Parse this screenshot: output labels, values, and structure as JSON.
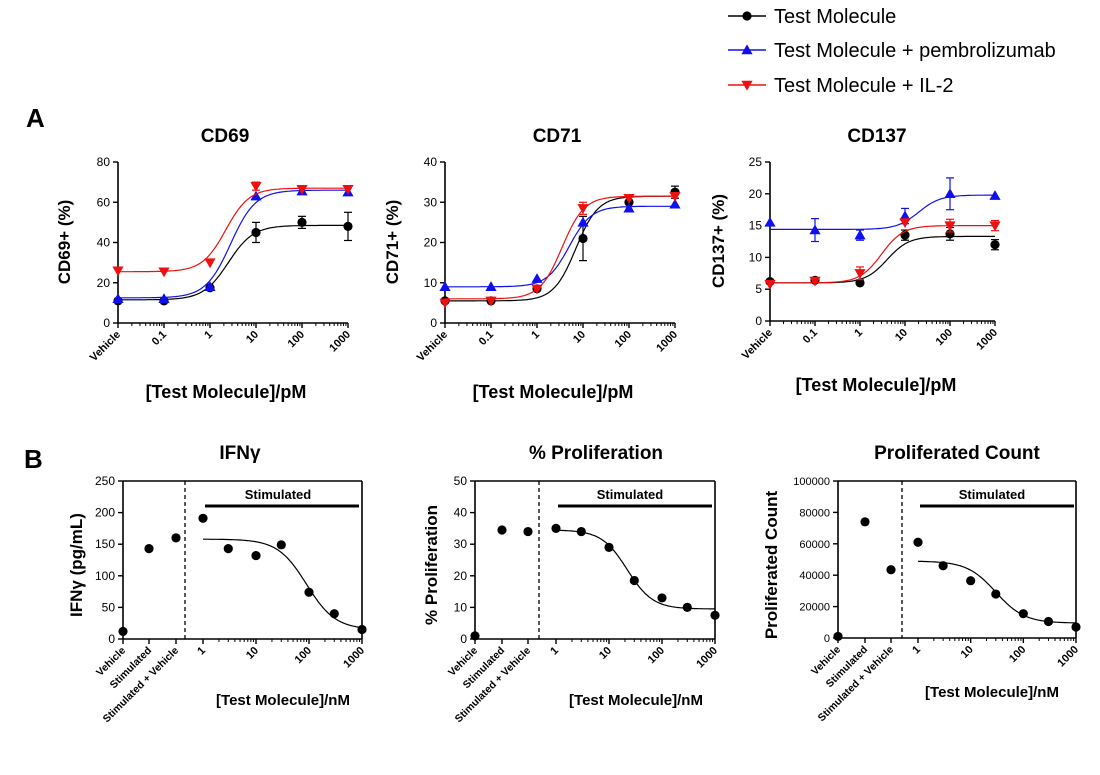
{
  "legend": {
    "items": [
      {
        "label": "Test Molecule",
        "color": "#000000",
        "marker": "circle"
      },
      {
        "label": "Test Molecule + pembrolizumab",
        "color": "#1010ee",
        "marker": "triangle-up"
      },
      {
        "label": "Test Molecule + IL-2",
        "color": "#ee1010",
        "marker": "triangle-down"
      }
    ]
  },
  "panels": {
    "a_label": "A",
    "b_label": "B"
  },
  "chart_data": [
    {
      "type": "scatter",
      "title": "CD69",
      "ylabel": "CD69+ (%)",
      "xlabel": "[Test Molecule]/pM",
      "ylim": [
        0,
        80
      ],
      "yticks": [
        0,
        20,
        40,
        60,
        80
      ],
      "xscale": "log",
      "xlim": [
        0.01,
        1000
      ],
      "xticks": [
        {
          "label": "Vehicle",
          "x": 0.01
        },
        {
          "label": "0.1",
          "x": 0.1
        },
        {
          "label": "1",
          "x": 1
        },
        {
          "label": "10",
          "x": 10
        },
        {
          "label": "100",
          "x": 100
        },
        {
          "label": "1000",
          "x": 1000
        }
      ],
      "series": [
        {
          "name": "Test Molecule",
          "color": "#000000",
          "marker": "circle",
          "points": [
            {
              "x": 0.01,
              "y": 11
            },
            {
              "x": 0.1,
              "y": 11
            },
            {
              "x": 1,
              "y": 17.5
            },
            {
              "x": 10,
              "y": 45,
              "err": 5
            },
            {
              "x": 100,
              "y": 50,
              "err": 3
            },
            {
              "x": 1000,
              "y": 48,
              "err": 7
            }
          ],
          "fit": {
            "bottom": 11.5,
            "top": 48.5,
            "ec50": 2.5,
            "hill": 1.6
          }
        },
        {
          "name": "Test Molecule + pembrolizumab",
          "color": "#1010ee",
          "marker": "triangle-up",
          "points": [
            {
              "x": 0.01,
              "y": 12
            },
            {
              "x": 0.1,
              "y": 12
            },
            {
              "x": 1,
              "y": 18
            },
            {
              "x": 10,
              "y": 63
            },
            {
              "x": 100,
              "y": 65.5
            },
            {
              "x": 1000,
              "y": 65
            }
          ],
          "fit": {
            "bottom": 12.5,
            "top": 66,
            "ec50": 2.8,
            "hill": 1.6
          }
        },
        {
          "name": "Test Molecule + IL-2",
          "color": "#ee1010",
          "marker": "triangle-down",
          "points": [
            {
              "x": 0.01,
              "y": 26
            },
            {
              "x": 0.1,
              "y": 25.5
            },
            {
              "x": 1,
              "y": 30
            },
            {
              "x": 10,
              "y": 68,
              "err": 2
            },
            {
              "x": 100,
              "y": 66.5
            },
            {
              "x": 1000,
              "y": 66.5
            }
          ],
          "fit": {
            "bottom": 25.5,
            "top": 67,
            "ec50": 2.2,
            "hill": 1.7
          }
        }
      ]
    },
    {
      "type": "scatter",
      "title": "CD71",
      "ylabel": "CD71+ (%)",
      "xlabel": "[Test Molecule]/pM",
      "ylim": [
        0,
        40
      ],
      "yticks": [
        0,
        10,
        20,
        30,
        40
      ],
      "xscale": "log",
      "xlim": [
        0.01,
        1000
      ],
      "xticks": [
        {
          "label": "Vehicle",
          "x": 0.01
        },
        {
          "label": "0.1",
          "x": 0.1
        },
        {
          "label": "1",
          "x": 1
        },
        {
          "label": "10",
          "x": 10
        },
        {
          "label": "100",
          "x": 100
        },
        {
          "label": "1000",
          "x": 1000
        }
      ],
      "series": [
        {
          "name": "Test Molecule",
          "color": "#000000",
          "marker": "circle",
          "points": [
            {
              "x": 0.01,
              "y": 5.5
            },
            {
              "x": 0.1,
              "y": 5.5
            },
            {
              "x": 1,
              "y": 8.5
            },
            {
              "x": 10,
              "y": 21,
              "err": 5.5
            },
            {
              "x": 100,
              "y": 30
            },
            {
              "x": 1000,
              "y": 32.5,
              "err": 1.5
            }
          ],
          "fit": {
            "bottom": 5.5,
            "top": 31.5,
            "ec50": 7,
            "hill": 1.8
          }
        },
        {
          "name": "Test Molecule + pembrolizumab",
          "color": "#1010ee",
          "marker": "triangle-up",
          "points": [
            {
              "x": 0.01,
              "y": 9
            },
            {
              "x": 0.1,
              "y": 9
            },
            {
              "x": 1,
              "y": 11
            },
            {
              "x": 10,
              "y": 25
            },
            {
              "x": 100,
              "y": 28.5
            },
            {
              "x": 1000,
              "y": 29.5
            }
          ],
          "fit": {
            "bottom": 9,
            "top": 29,
            "ec50": 5,
            "hill": 1.8
          }
        },
        {
          "name": "Test Molecule + IL-2",
          "color": "#ee1010",
          "marker": "triangle-down",
          "points": [
            {
              "x": 0.01,
              "y": 5
            },
            {
              "x": 0.1,
              "y": 5.5
            },
            {
              "x": 1,
              "y": 8.5
            },
            {
              "x": 10,
              "y": 28.5,
              "err": 1.5
            },
            {
              "x": 100,
              "y": 31
            },
            {
              "x": 1000,
              "y": 31.5
            }
          ],
          "fit": {
            "bottom": 6,
            "top": 31.5,
            "ec50": 3.5,
            "hill": 1.8
          }
        }
      ]
    },
    {
      "type": "scatter",
      "title": "CD137",
      "ylabel": "CD137+ (%)",
      "xlabel": "[Test Molecule]/pM",
      "ylim": [
        0,
        25
      ],
      "yticks": [
        0,
        5,
        10,
        15,
        20,
        25
      ],
      "xscale": "log",
      "xlim": [
        0.01,
        1000
      ],
      "xticks": [
        {
          "label": "Vehicle",
          "x": 0.01
        },
        {
          "label": "0.1",
          "x": 0.1
        },
        {
          "label": "1",
          "x": 1
        },
        {
          "label": "10",
          "x": 10
        },
        {
          "label": "100",
          "x": 100
        },
        {
          "label": "1000",
          "x": 1000
        }
      ],
      "series": [
        {
          "name": "Test Molecule",
          "color": "#000000",
          "marker": "circle",
          "points": [
            {
              "x": 0.01,
              "y": 6.2
            },
            {
              "x": 0.1,
              "y": 6.4
            },
            {
              "x": 1,
              "y": 6
            },
            {
              "x": 10,
              "y": 13.5,
              "err": 0.8
            },
            {
              "x": 100,
              "y": 13.7,
              "err": 1
            },
            {
              "x": 1000,
              "y": 12,
              "err": 0.8
            }
          ],
          "fit": {
            "bottom": 6,
            "top": 13.3,
            "ec50": 4,
            "hill": 1.8
          }
        },
        {
          "name": "Test Molecule + pembrolizumab",
          "color": "#1010ee",
          "marker": "triangle-up",
          "points": [
            {
              "x": 0.01,
              "y": 15.5
            },
            {
              "x": 0.1,
              "y": 14.3,
              "err": 1.8
            },
            {
              "x": 1,
              "y": 13.5,
              "err": 0.8
            },
            {
              "x": 10,
              "y": 16.5,
              "err": 1.2
            },
            {
              "x": 100,
              "y": 20,
              "err": 2.5
            },
            {
              "x": 1000,
              "y": 19.7
            }
          ],
          "fit": {
            "bottom": 14.4,
            "top": 19.8,
            "ec50": 20,
            "hill": 1.8
          }
        },
        {
          "name": "Test Molecule + IL-2",
          "color": "#ee1010",
          "marker": "triangle-down",
          "points": [
            {
              "x": 0.01,
              "y": 5.8
            },
            {
              "x": 0.1,
              "y": 6.3
            },
            {
              "x": 1,
              "y": 7.5,
              "err": 1
            },
            {
              "x": 10,
              "y": 15.5
            },
            {
              "x": 100,
              "y": 15,
              "err": 1
            },
            {
              "x": 1000,
              "y": 15,
              "err": 0.8
            }
          ],
          "fit": {
            "bottom": 6,
            "top": 15,
            "ec50": 3,
            "hill": 1.8
          }
        }
      ]
    },
    {
      "type": "scatter",
      "title": "IFNγ",
      "ylabel": "IFNγ (pg/mL)",
      "xlabel": "[Test Molecule]/nM",
      "annotation": "Stimulated",
      "ylim": [
        0,
        250
      ],
      "yticks": [
        0,
        50,
        100,
        150,
        200,
        250
      ],
      "xscale": "log",
      "xlim": [
        1,
        1000
      ],
      "xticks": [
        {
          "label": "1",
          "x": 1
        },
        {
          "label": "10",
          "x": 10
        },
        {
          "label": "100",
          "x": 100
        },
        {
          "label": "1000",
          "x": 1000
        }
      ],
      "categories": [
        {
          "label": "Vehicle",
          "y": 12
        },
        {
          "label": "Stimulated",
          "y": 143
        },
        {
          "label": "Stimulated + Vehicle",
          "y": 160
        }
      ],
      "series": [
        {
          "name": "Test Molecule",
          "color": "#000000",
          "marker": "circle",
          "points": [
            {
              "x": 1,
              "y": 191
            },
            {
              "x": 3,
              "y": 143
            },
            {
              "x": 10,
              "y": 132
            },
            {
              "x": 30,
              "y": 149
            },
            {
              "x": 100,
              "y": 74
            },
            {
              "x": 300,
              "y": 40
            },
            {
              "x": 1000,
              "y": 15
            }
          ],
          "fit": {
            "top": 158,
            "bottom": 15,
            "ec50": 90,
            "hill": -1.6
          }
        }
      ]
    },
    {
      "type": "scatter",
      "title": "% Proliferation",
      "ylabel": "% Proliferation",
      "xlabel": "[Test Molecule]/nM",
      "annotation": "Stimulated",
      "ylim": [
        0,
        50
      ],
      "yticks": [
        0,
        10,
        20,
        30,
        40,
        50
      ],
      "xscale": "log",
      "xlim": [
        1,
        1000
      ],
      "xticks": [
        {
          "label": "1",
          "x": 1
        },
        {
          "label": "10",
          "x": 10
        },
        {
          "label": "100",
          "x": 100
        },
        {
          "label": "1000",
          "x": 1000
        }
      ],
      "categories": [
        {
          "label": "Vehicle",
          "y": 1
        },
        {
          "label": "Stimulated",
          "y": 34.5
        },
        {
          "label": "Stimulated + Vehicle",
          "y": 34
        }
      ],
      "series": [
        {
          "name": "Test Molecule",
          "color": "#000000",
          "marker": "circle",
          "points": [
            {
              "x": 1,
              "y": 35
            },
            {
              "x": 3,
              "y": 34
            },
            {
              "x": 10,
              "y": 29
            },
            {
              "x": 30,
              "y": 18.5
            },
            {
              "x": 100,
              "y": 13
            },
            {
              "x": 300,
              "y": 10
            },
            {
              "x": 1000,
              "y": 7.5
            }
          ],
          "fit": {
            "top": 34.5,
            "bottom": 9.5,
            "ec50": 22,
            "hill": -1.8
          }
        }
      ]
    },
    {
      "type": "scatter",
      "title": "Proliferated Count",
      "ylabel": "Proliferated Count",
      "xlabel": "[Test Molecule]/nM",
      "annotation": "Stimulated",
      "ylim": [
        0,
        100000
      ],
      "yticks": [
        0,
        20000,
        40000,
        60000,
        80000,
        100000
      ],
      "xscale": "log",
      "xlim": [
        1,
        1000
      ],
      "xticks": [
        {
          "label": "1",
          "x": 1
        },
        {
          "label": "10",
          "x": 10
        },
        {
          "label": "100",
          "x": 100
        },
        {
          "label": "1000",
          "x": 1000
        }
      ],
      "categories": [
        {
          "label": "Vehicle",
          "y": 1000
        },
        {
          "label": "Stimulated",
          "y": 74000
        },
        {
          "label": "Stimulated + Vehicle",
          "y": 43500
        }
      ],
      "series": [
        {
          "name": "Test Molecule",
          "color": "#000000",
          "marker": "circle",
          "points": [
            {
              "x": 1,
              "y": 61000
            },
            {
              "x": 3,
              "y": 46000
            },
            {
              "x": 10,
              "y": 36500
            },
            {
              "x": 30,
              "y": 28000
            },
            {
              "x": 100,
              "y": 15500
            },
            {
              "x": 300,
              "y": 10500
            },
            {
              "x": 1000,
              "y": 7000
            }
          ],
          "fit": {
            "top": 49000,
            "bottom": 9500,
            "ec50": 30,
            "hill": -1.6
          }
        }
      ]
    }
  ]
}
